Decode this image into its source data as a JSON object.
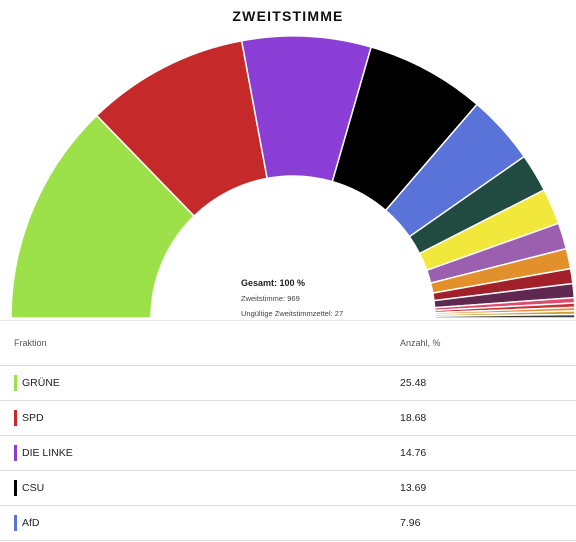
{
  "chart_data": {
    "type": "pie",
    "title": "ZWEITSTIMME",
    "summary": {
      "total": "Gesamt: 100 %",
      "votes": "Zweitstimme: 969",
      "invalid": "Ungültige Zweitstimmzettel: 27"
    },
    "slices": [
      {
        "label": "GRÜNE",
        "value": 25.48,
        "color": "#9de14a"
      },
      {
        "label": "SPD",
        "value": 18.68,
        "color": "#c5292a"
      },
      {
        "label": "DIE LINKE",
        "value": 14.76,
        "color": "#8a3ed6"
      },
      {
        "label": "CSU",
        "value": 13.69,
        "color": "#000000"
      },
      {
        "label": "AfD",
        "value": 7.96,
        "color": "#5a73d8"
      },
      {
        "value": 4.4,
        "color": "#214a40"
      },
      {
        "value": 4.1,
        "color": "#f2e83b"
      },
      {
        "value": 3.0,
        "color": "#9b5fb0"
      },
      {
        "value": 2.3,
        "color": "#e2902c"
      },
      {
        "value": 1.7,
        "color": "#a1202a"
      },
      {
        "value": 1.6,
        "color": "#5e2850"
      },
      {
        "value": 0.6,
        "color": "#e04a6c"
      },
      {
        "value": 0.5,
        "color": "#c83232"
      },
      {
        "value": 0.4,
        "color": "#ef8d3c"
      },
      {
        "value": 0.4,
        "color": "#c9a22e"
      },
      {
        "value": 0.4,
        "color": "#3a3a3a"
      }
    ]
  },
  "table": {
    "col_party": "Fraktion",
    "col_share": "Anzahl, %",
    "rows": [
      {
        "party": "GRÜNE",
        "share": "25.48",
        "color": "#9de14a"
      },
      {
        "party": "SPD",
        "share": "18.68",
        "color": "#c5292a"
      },
      {
        "party": "DIE LINKE",
        "share": "14.76",
        "color": "#8a3ed6"
      },
      {
        "party": "CSU",
        "share": "13.69",
        "color": "#000000"
      },
      {
        "party": "AfD",
        "share": "7.96",
        "color": "#5a73d8"
      }
    ]
  }
}
